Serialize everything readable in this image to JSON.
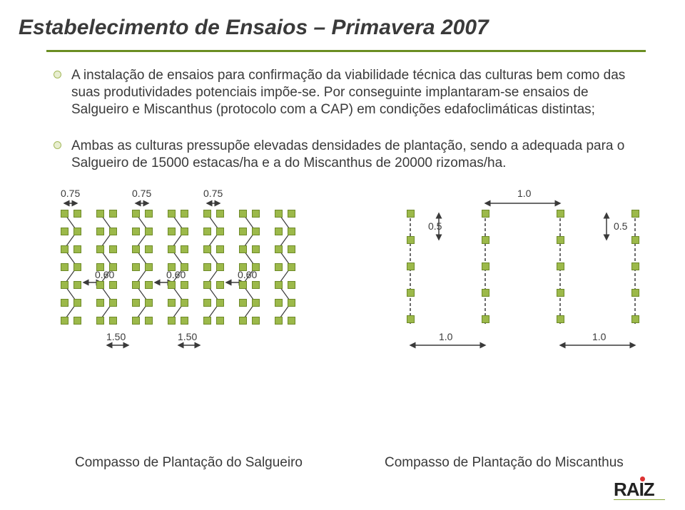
{
  "title": "Estabelecimento de Ensaios – Primavera 2007",
  "bullets": [
    "A instalação de ensaios para confirmação da viabilidade técnica das culturas bem como das suas produtividades potenciais impõe-se. Por conseguinte implantaram-se ensaios de Salgueiro e Miscanthus (protocolo com a CAP) em condições edafoclimáticas distintas;",
    "Ambas as culturas pressupõe elevadas densidades de plantação, sendo a adequada para o Salgueiro de 15000 estacas/ha e a do Miscanthus de 20000 rizomas/ha."
  ],
  "diagram_left": {
    "top_labels": [
      "0.75",
      "0.75",
      "0.75"
    ],
    "mid_labels": [
      "0.60",
      "0.60",
      "0.60"
    ],
    "bottom_labels": [
      "1.50",
      "1.50"
    ],
    "colors": {
      "node": "#9cb94a",
      "line": "#3a3a3a"
    }
  },
  "diagram_right": {
    "top_label": "1.0",
    "side_labels": [
      "0.5",
      "0.5"
    ],
    "bottom_labels": [
      "1.0",
      "1.0"
    ],
    "colors": {
      "node": "#9cb94a",
      "line": "#3a3a3a"
    }
  },
  "caption_left": "Compasso de Plantação do Salgueiro",
  "caption_right": "Compasso de Plantação do Miscanthus",
  "logo_text": "RA Z",
  "logo_accent": "I"
}
